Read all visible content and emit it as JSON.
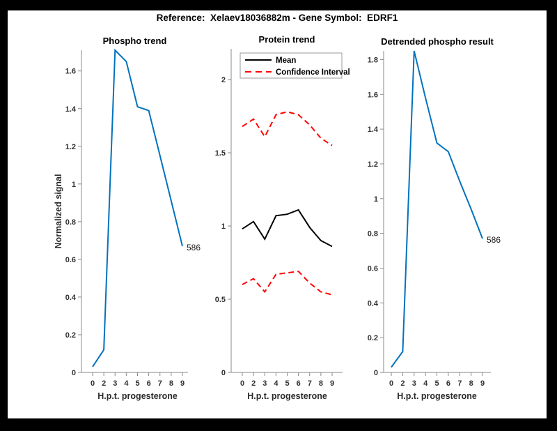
{
  "figure": {
    "title": "Reference:  Xelaev18036882m - Gene Symbol:  EDRF1",
    "background": "#ffffff",
    "matte": "#000000"
  },
  "colors": {
    "line_blue": "#0072BD",
    "line_red": "#FF0000",
    "line_black": "#000000",
    "axis": "#8a8a8a",
    "tick_text": "#303030"
  },
  "chart_data": [
    {
      "type": "line",
      "title": "Phospho trend",
      "xlabel": "H.p.t. progesterone",
      "ylabel": "Normalized signal",
      "x_tick_labels": [
        "0",
        "2",
        "3",
        "4",
        "5",
        "6",
        "7",
        "8",
        "9"
      ],
      "y_ticks": [
        0,
        0.2,
        0.4,
        0.6,
        0.8,
        1,
        1.2,
        1.4,
        1.6
      ],
      "y_tick_labels": [
        "0",
        "0.2",
        "0.4",
        "0.6",
        "0.8",
        "1",
        "1.2",
        "1.4",
        "1.6"
      ],
      "ylim": [
        0,
        1.71
      ],
      "grid": false,
      "legend": null,
      "series": [
        {
          "name": "phospho-signal",
          "color": "#0072BD",
          "dash": "solid",
          "width": 2,
          "values": [
            0.03,
            0.12,
            1.71,
            1.65,
            1.41,
            1.39,
            1.15,
            0.91,
            0.67
          ]
        }
      ],
      "end_annotation": "586"
    },
    {
      "type": "line",
      "title": "Protein trend",
      "xlabel": "H.p.t. progesterone",
      "ylabel": null,
      "x_tick_labels": [
        "0",
        "2",
        "3",
        "4",
        "5",
        "6",
        "7",
        "8",
        "9"
      ],
      "y_ticks": [
        0,
        0.5,
        1,
        1.5,
        2
      ],
      "y_tick_labels": [
        "0",
        "0.5",
        "1",
        "1.5",
        "2"
      ],
      "ylim": [
        0,
        2.21
      ],
      "grid": false,
      "legend": {
        "position": "top-left",
        "entries": [
          {
            "label": "Mean",
            "color": "#000000",
            "dash": "solid"
          },
          {
            "label": "Confidence Interval",
            "color": "#FF0000",
            "dash": "dashed"
          }
        ]
      },
      "series": [
        {
          "name": "mean",
          "color": "#000000",
          "dash": "solid",
          "width": 2,
          "values": [
            0.98,
            1.03,
            0.91,
            1.07,
            1.08,
            1.11,
            0.99,
            0.9,
            0.86
          ]
        },
        {
          "name": "confidence-interval-upper",
          "color": "#FF0000",
          "dash": "dashed",
          "width": 2,
          "values": [
            1.68,
            1.73,
            1.61,
            1.76,
            1.78,
            1.76,
            1.69,
            1.6,
            1.55
          ]
        },
        {
          "name": "confidence-interval-lower",
          "color": "#FF0000",
          "dash": "dashed",
          "width": 2,
          "values": [
            0.6,
            0.64,
            0.55,
            0.67,
            0.68,
            0.69,
            0.61,
            0.55,
            0.53
          ]
        }
      ],
      "end_annotation": null
    },
    {
      "type": "line",
      "title": "Detrended phospho result",
      "xlabel": "H.p.t. progesterone",
      "ylabel": null,
      "x_tick_labels": [
        "0",
        "2",
        "3",
        "4",
        "5",
        "6",
        "7",
        "8",
        "9"
      ],
      "y_ticks": [
        0,
        0.2,
        0.4,
        0.6,
        0.8,
        1,
        1.2,
        1.4,
        1.6,
        1.8
      ],
      "y_tick_labels": [
        "0",
        "0.2",
        "0.4",
        "0.6",
        "0.8",
        "1",
        "1.2",
        "1.4",
        "1.6",
        "1.8"
      ],
      "ylim": [
        0,
        1.85
      ],
      "grid": false,
      "legend": null,
      "series": [
        {
          "name": "detrended-phospho-signal",
          "color": "#0072BD",
          "dash": "solid",
          "width": 2,
          "values": [
            0.03,
            0.12,
            1.85,
            1.58,
            1.32,
            1.27,
            1.1,
            0.94,
            0.77
          ]
        }
      ],
      "end_annotation": "586"
    }
  ]
}
